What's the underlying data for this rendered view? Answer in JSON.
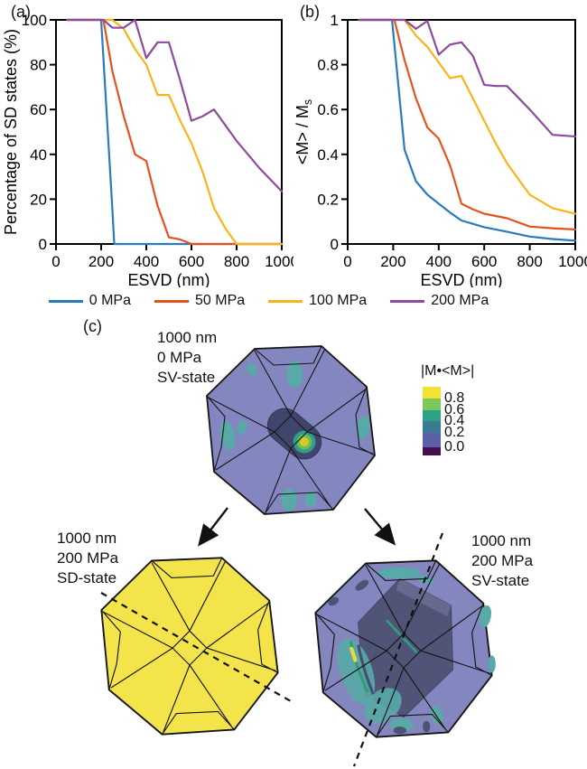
{
  "figure_labels": {
    "a": "(a)",
    "b": "(b)",
    "c": "(c)"
  },
  "chart_data": [
    {
      "id": "panel_a",
      "type": "line",
      "title": "",
      "xlabel": "ESVD (nm)",
      "ylabel": "Percentage of SD states (%)",
      "ylabel_sub": "",
      "xlim": [
        0,
        1000
      ],
      "ylim": [
        0,
        100
      ],
      "xticks": [
        0,
        200,
        400,
        600,
        800,
        1000
      ],
      "xticklabels": [
        "0",
        "200",
        "400",
        "600",
        "800",
        "1000"
      ],
      "yticks": [
        0,
        20,
        40,
        60,
        80,
        100
      ],
      "yticklabels": [
        "0",
        "20",
        "40",
        "60",
        "80",
        "100"
      ],
      "grid": false,
      "series": [
        {
          "name": "0 MPa",
          "color": "#2a7abf",
          "points": [
            [
              50,
              100
            ],
            [
              200,
              100
            ],
            [
              250,
              15
            ],
            [
              258,
              0
            ],
            [
              300,
              0
            ],
            [
              1000,
              0
            ]
          ]
        },
        {
          "name": "50 MPa",
          "color": "#e6521c",
          "points": [
            [
              50,
              100
            ],
            [
              210,
              100
            ],
            [
              250,
              77
            ],
            [
              300,
              57
            ],
            [
              350,
              40
            ],
            [
              400,
              37
            ],
            [
              450,
              17
            ],
            [
              500,
              3
            ],
            [
              550,
              2
            ],
            [
              600,
              0
            ],
            [
              1000,
              0
            ]
          ]
        },
        {
          "name": "100 MPa",
          "color": "#fcb318",
          "points": [
            [
              50,
              100
            ],
            [
              250,
              100
            ],
            [
              300,
              96
            ],
            [
              350,
              87
            ],
            [
              400,
              80
            ],
            [
              450,
              66.5
            ],
            [
              500,
              66.5
            ],
            [
              550,
              55
            ],
            [
              600,
              45
            ],
            [
              650,
              32
            ],
            [
              700,
              16
            ],
            [
              750,
              7
            ],
            [
              800,
              0
            ],
            [
              1000,
              0
            ]
          ]
        },
        {
          "name": "200 MPa",
          "color": "#8d4a9e",
          "points": [
            [
              50,
              100
            ],
            [
              210,
              100
            ],
            [
              250,
              96.5
            ],
            [
              300,
              96.5
            ],
            [
              350,
              100
            ],
            [
              400,
              83
            ],
            [
              450,
              90
            ],
            [
              500,
              90
            ],
            [
              550,
              73
            ],
            [
              600,
              55
            ],
            [
              650,
              57
            ],
            [
              700,
              60
            ],
            [
              800,
              46
            ],
            [
              900,
              34
            ],
            [
              1000,
              23.5
            ]
          ]
        }
      ]
    },
    {
      "id": "panel_b",
      "type": "line",
      "title": "",
      "xlabel": "ESVD (nm)",
      "ylabel": "<M> / M",
      "ylabel_sub": "s",
      "xlim": [
        0,
        1000
      ],
      "ylim": [
        0,
        1
      ],
      "xticks": [
        0,
        200,
        400,
        600,
        800,
        1000
      ],
      "xticklabels": [
        "0",
        "200",
        "400",
        "600",
        "800",
        "1000"
      ],
      "yticks": [
        0,
        0.2,
        0.4,
        0.6,
        0.8,
        1
      ],
      "yticklabels": [
        "0",
        "0.2",
        "0.4",
        "0.6",
        "0.8",
        "1"
      ],
      "grid": false,
      "series": [
        {
          "name": "0 MPa",
          "color": "#2a7abf",
          "points": [
            [
              50,
              1
            ],
            [
              195,
              1
            ],
            [
              250,
              0.42
            ],
            [
              300,
              0.28
            ],
            [
              350,
              0.22
            ],
            [
              400,
              0.18
            ],
            [
              450,
              0.14
            ],
            [
              500,
              0.105
            ],
            [
              550,
              0.09
            ],
            [
              600,
              0.075
            ],
            [
              700,
              0.055
            ],
            [
              800,
              0.033
            ],
            [
              900,
              0.022
            ],
            [
              1000,
              0.015
            ]
          ]
        },
        {
          "name": "50 MPa",
          "color": "#e6521c",
          "points": [
            [
              50,
              1
            ],
            [
              205,
              1
            ],
            [
              250,
              0.82
            ],
            [
              300,
              0.65
            ],
            [
              350,
              0.52
            ],
            [
              400,
              0.47
            ],
            [
              450,
              0.35
            ],
            [
              500,
              0.18
            ],
            [
              550,
              0.155
            ],
            [
              600,
              0.135
            ],
            [
              650,
              0.125
            ],
            [
              700,
              0.115
            ],
            [
              800,
              0.078
            ],
            [
              900,
              0.07
            ],
            [
              1000,
              0.065
            ]
          ]
        },
        {
          "name": "100 MPa",
          "color": "#fcb318",
          "points": [
            [
              50,
              1
            ],
            [
              250,
              1
            ],
            [
              300,
              0.93
            ],
            [
              350,
              0.88
            ],
            [
              400,
              0.81
            ],
            [
              450,
              0.74
            ],
            [
              500,
              0.75
            ],
            [
              550,
              0.65
            ],
            [
              600,
              0.55
            ],
            [
              650,
              0.45
            ],
            [
              700,
              0.36
            ],
            [
              750,
              0.29
            ],
            [
              800,
              0.22
            ],
            [
              900,
              0.16
            ],
            [
              1000,
              0.135
            ]
          ]
        },
        {
          "name": "200 MPa",
          "color": "#8d4a9e",
          "points": [
            [
              50,
              1
            ],
            [
              250,
              1
            ],
            [
              300,
              0.96
            ],
            [
              350,
              0.995
            ],
            [
              400,
              0.845
            ],
            [
              450,
              0.89
            ],
            [
              500,
              0.9
            ],
            [
              550,
              0.84
            ],
            [
              600,
              0.71
            ],
            [
              650,
              0.705
            ],
            [
              700,
              0.705
            ],
            [
              800,
              0.6
            ],
            [
              900,
              0.487
            ],
            [
              1000,
              0.48
            ]
          ]
        }
      ]
    }
  ],
  "legend": {
    "items": [
      {
        "label": "0 MPa",
        "color": "#2a7abf"
      },
      {
        "label": "50 MPa",
        "color": "#e6521c"
      },
      {
        "label": "100 MPa",
        "color": "#fcb318"
      },
      {
        "label": "200 MPa",
        "color": "#8d4a9e"
      }
    ]
  },
  "panel_c": {
    "label": "(c)",
    "top_model": {
      "lines": [
        "1000 nm",
        "0 MPa",
        "SV-state"
      ]
    },
    "bottom_left_model": {
      "lines": [
        "1000 nm",
        "200 MPa",
        "SD-state"
      ]
    },
    "bottom_right_model": {
      "lines": [
        "1000 nm",
        "200 MPa",
        "SV-state"
      ]
    },
    "colorbar": {
      "title": "|M•<M>|",
      "tick_labels": [
        "0.8",
        "0.6",
        "0.4",
        "0.2",
        "0.0"
      ],
      "band_colors": [
        "#f2e235",
        "#7cc85c",
        "#2ea287",
        "#3a7b93",
        "#5a61a8",
        "#46104f"
      ]
    },
    "colors": {
      "body_purple": "#8487bf",
      "sd_yellow": "#f4e44c",
      "teal_patch": "#58aaa6",
      "vortex_dark": "#40456b",
      "slab_dark": "#4e5374",
      "slab_light": "#6b6f92",
      "ring_teal": "#2f9d8c",
      "ring_green": "#6fbe4f",
      "ring_yellow": "#d8c92e"
    }
  }
}
